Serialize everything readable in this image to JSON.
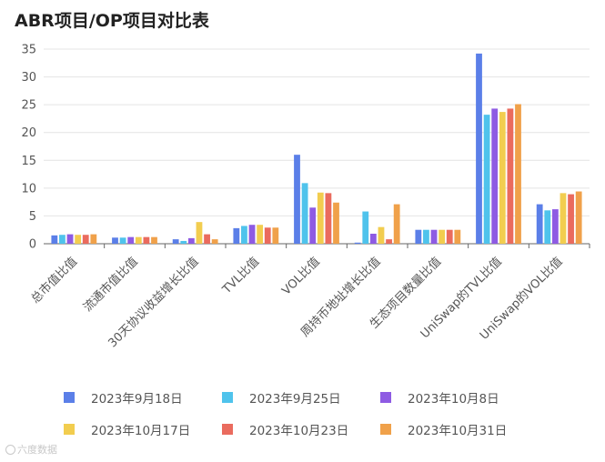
{
  "chart_data": {
    "type": "bar",
    "title": "ABR项目/OP项目对比表",
    "xlabel": "",
    "ylabel": "",
    "ylim": [
      0,
      35
    ],
    "yticks": [
      0,
      5,
      10,
      15,
      20,
      25,
      30,
      35
    ],
    "grid": true,
    "legend_position": "bottom",
    "categories": [
      "总市值比值",
      "流通市值比值",
      "30天协议收益增长比值",
      "TVL比值",
      "VOL比值",
      "周持币地址增长比值",
      "生态项目数量比值",
      "UniSwap的TVL比值",
      "UniSwap的VOL比值"
    ],
    "series": [
      {
        "name": "2023年9月18日",
        "color": "#5b7fe8",
        "values": [
          1.5,
          1.1,
          0.8,
          2.8,
          16.0,
          0.2,
          2.5,
          34.2,
          7.1
        ]
      },
      {
        "name": "2023年9月25日",
        "color": "#4fc3ec",
        "values": [
          1.6,
          1.1,
          0.5,
          3.2,
          10.9,
          5.8,
          2.5,
          23.2,
          6.0
        ]
      },
      {
        "name": "2023年10月8日",
        "color": "#8e5be3",
        "values": [
          1.7,
          1.2,
          1.0,
          3.4,
          6.5,
          1.8,
          2.5,
          24.3,
          6.2
        ]
      },
      {
        "name": "2023年10月17日",
        "color": "#f2cd4f",
        "values": [
          1.6,
          1.2,
          3.9,
          3.4,
          9.2,
          3.0,
          2.5,
          23.7,
          9.1
        ]
      },
      {
        "name": "2023年10月23日",
        "color": "#ea6b5e",
        "values": [
          1.6,
          1.2,
          1.7,
          2.9,
          9.1,
          0.8,
          2.5,
          24.3,
          8.9
        ]
      },
      {
        "name": "2023年10月31日",
        "color": "#f0a14a",
        "values": [
          1.7,
          1.2,
          0.8,
          2.9,
          7.4,
          7.1,
          2.5,
          25.1,
          9.4
        ]
      }
    ]
  },
  "watermark": "六度数据"
}
